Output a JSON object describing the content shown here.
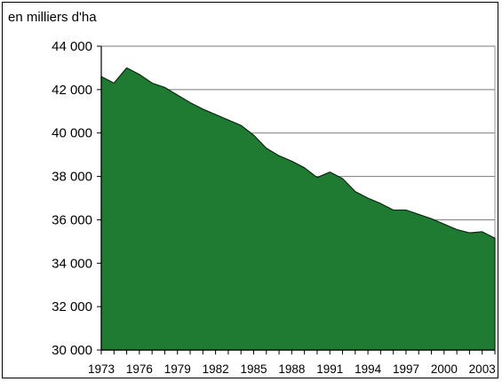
{
  "chart_data": {
    "type": "area",
    "title": "",
    "ylabel": "en milliers d'ha",
    "xlabel": "",
    "ylim": [
      30000,
      44000
    ],
    "yticks": [
      30000,
      32000,
      34000,
      36000,
      38000,
      40000,
      42000,
      44000
    ],
    "ytick_labels": [
      "30 000",
      "32 000",
      "34 000",
      "36 000",
      "38 000",
      "40 000",
      "42 000",
      "44 000"
    ],
    "xlim": [
      1973,
      2004
    ],
    "xtick_labels": [
      "1973",
      "1976",
      "1979",
      "1982",
      "1985",
      "1988",
      "1991",
      "1994",
      "1997",
      "2000",
      "2003"
    ],
    "grid": true,
    "fill_color": "#1f7a32",
    "series": [
      {
        "x": [
          1973,
          1974,
          1975,
          1976,
          1977,
          1978,
          1979,
          1980,
          1981,
          1982,
          1983,
          1984,
          1985,
          1986,
          1987,
          1988,
          1989,
          1990,
          1991,
          1992,
          1993,
          1994,
          1995,
          1996,
          1997,
          1998,
          1999,
          2000,
          2001,
          2002,
          2003,
          2004
        ],
        "values": [
          42600,
          42300,
          43000,
          42700,
          42300,
          42100,
          41750,
          41400,
          41100,
          40850,
          40600,
          40350,
          39900,
          39300,
          38950,
          38700,
          38400,
          37950,
          38200,
          37900,
          37300,
          37000,
          36750,
          36450,
          36450,
          36250,
          36050,
          35800,
          35550,
          35400,
          35450,
          35150
        ]
      }
    ]
  }
}
